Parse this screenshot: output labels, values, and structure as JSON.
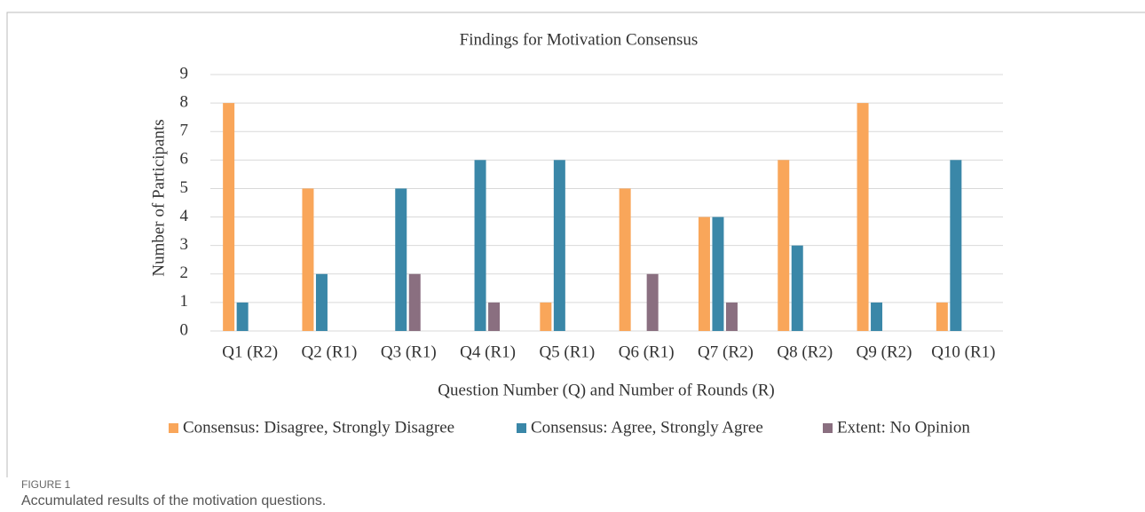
{
  "chart_data": {
    "type": "bar",
    "title": "Findings for Motivation Consensus",
    "xlabel": "Question Number (Q) and Number of Rounds (R)",
    "ylabel": "Number of Participants",
    "categories": [
      "Q1 (R2)",
      "Q2 (R1)",
      "Q3 (R1)",
      "Q4 (R1)",
      "Q5 (R1)",
      "Q6 (R1)",
      "Q7 (R2)",
      "Q8 (R2)",
      "Q9 (R2)",
      "Q10 (R1)"
    ],
    "series": [
      {
        "name": "Consensus: Disagree, Strongly Disagree",
        "color": "#f9a65a",
        "values": [
          8,
          5,
          0,
          0,
          1,
          5,
          4,
          6,
          8,
          1
        ]
      },
      {
        "name": "Consensus: Agree, Strongly Agree",
        "color": "#3a87a8",
        "values": [
          1,
          2,
          5,
          6,
          6,
          0,
          4,
          3,
          1,
          6
        ]
      },
      {
        "name": "Extent: No Opinion",
        "color": "#8a6f80",
        "values": [
          0,
          0,
          2,
          1,
          0,
          2,
          1,
          0,
          0,
          0
        ]
      }
    ],
    "ylim": [
      0,
      9
    ],
    "yticks": [
      0,
      1,
      2,
      3,
      4,
      5,
      6,
      7,
      8,
      9
    ],
    "grid": true,
    "legend": "bottom"
  },
  "figure": {
    "label": "FIGURE 1",
    "caption": "Accumulated results of the motivation questions."
  }
}
